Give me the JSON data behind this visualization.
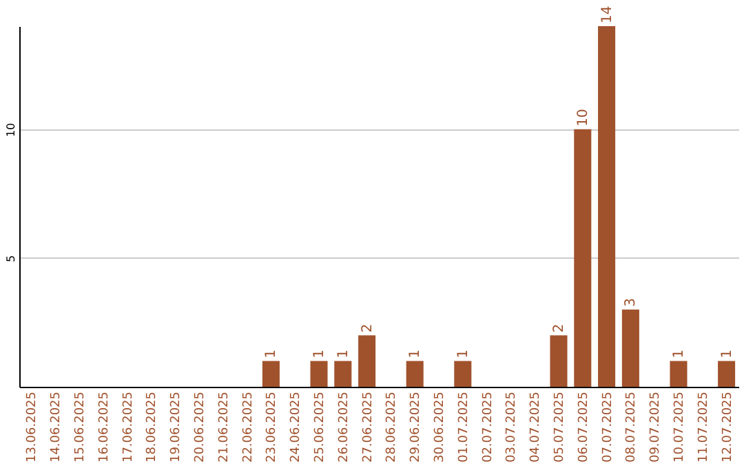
{
  "chart_data": {
    "type": "bar",
    "categories": [
      "13.06.2025",
      "14.06.2025",
      "15.06.2025",
      "16.06.2025",
      "17.06.2025",
      "18.06.2025",
      "19.06.2025",
      "20.06.2025",
      "21.06.2025",
      "22.06.2025",
      "23.06.2025",
      "24.06.2025",
      "25.06.2025",
      "26.06.2025",
      "27.06.2025",
      "28.06.2025",
      "29.06.2025",
      "30.06.2025",
      "01.07.2025",
      "02.07.2025",
      "03.07.2025",
      "04.07.2025",
      "05.07.2025",
      "06.07.2025",
      "07.07.2025",
      "08.07.2025",
      "09.07.2025",
      "10.07.2025",
      "11.07.2025",
      "12.07.2025"
    ],
    "values": [
      0,
      0,
      0,
      0,
      0,
      0,
      0,
      0,
      0,
      0,
      1,
      0,
      1,
      1,
      2,
      0,
      1,
      0,
      1,
      0,
      0,
      0,
      2,
      10,
      14,
      3,
      0,
      1,
      0,
      1
    ],
    "value_labels": [
      null,
      null,
      null,
      null,
      null,
      null,
      null,
      null,
      null,
      null,
      "1",
      null,
      "1",
      "1",
      "2",
      null,
      "1",
      null,
      "1",
      null,
      null,
      null,
      "2",
      "10",
      "14",
      "3",
      null,
      "1",
      null,
      "1"
    ],
    "color": "#a0522d",
    "ylim": [
      0,
      14
    ],
    "yticks": [
      5,
      10
    ],
    "grid": "y"
  }
}
